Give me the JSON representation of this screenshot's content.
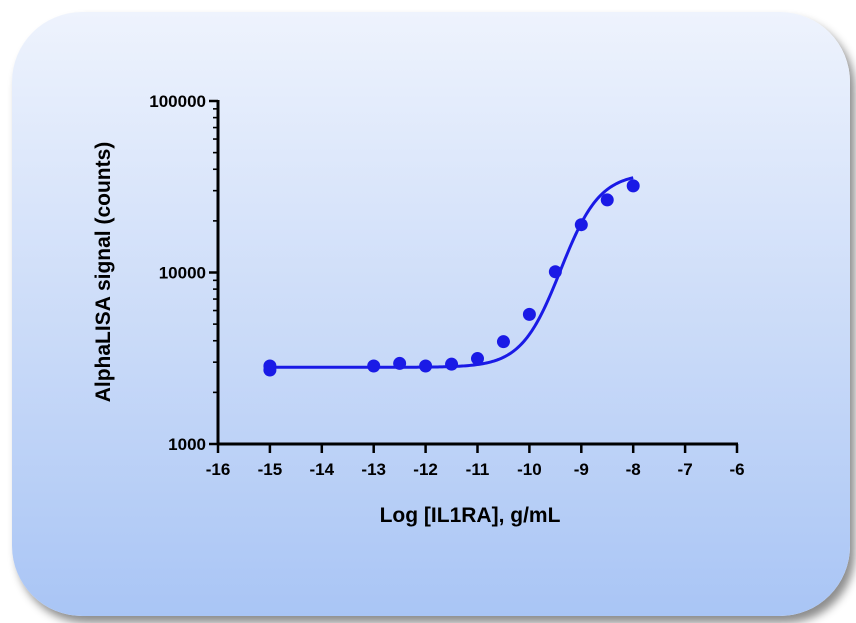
{
  "chart_data": {
    "type": "scatter",
    "xlabel": "Log [IL1RA], g/mL",
    "ylabel": "AlphaLISA signal (counts)",
    "xlim": [
      -16,
      -6
    ],
    "ylim": [
      1000,
      100000
    ],
    "yscale": "log",
    "x_ticks": [
      -16,
      -15,
      -14,
      -13,
      -12,
      -11,
      -10,
      -9,
      -8,
      -7,
      -6
    ],
    "x_tick_labels": [
      "-16",
      "-15",
      "-14",
      "-13",
      "-12",
      "-11",
      "-10",
      "-9",
      "-8",
      "-7",
      "-6"
    ],
    "y_ticks": [
      1000,
      10000,
      100000
    ],
    "y_tick_labels": [
      "1000",
      "10000",
      "100000"
    ],
    "grid": false,
    "colors": {
      "series": "#1a1ae6",
      "axis": "#000000"
    },
    "series": [
      {
        "points": [
          {
            "x": -15,
            "y": 2850
          },
          {
            "x": -15,
            "y": 2700
          },
          {
            "x": -13,
            "y": 2850
          },
          {
            "x": -12.5,
            "y": 2950
          },
          {
            "x": -12,
            "y": 2850
          },
          {
            "x": -11.5,
            "y": 2920
          },
          {
            "x": -11,
            "y": 3150
          },
          {
            "x": -10.5,
            "y": 3950
          },
          {
            "x": -10,
            "y": 5700
          },
          {
            "x": -9.5,
            "y": 10100
          },
          {
            "x": -9,
            "y": 19000
          },
          {
            "x": -8.5,
            "y": 26500
          },
          {
            "x": -8,
            "y": 32000
          }
        ],
        "fit_curve": {
          "model": "4PL",
          "bottom": 2800,
          "top": 38000,
          "logEC50": -9.4,
          "hill": 1.15,
          "x_range": [
            -15,
            -8
          ]
        }
      }
    ]
  }
}
